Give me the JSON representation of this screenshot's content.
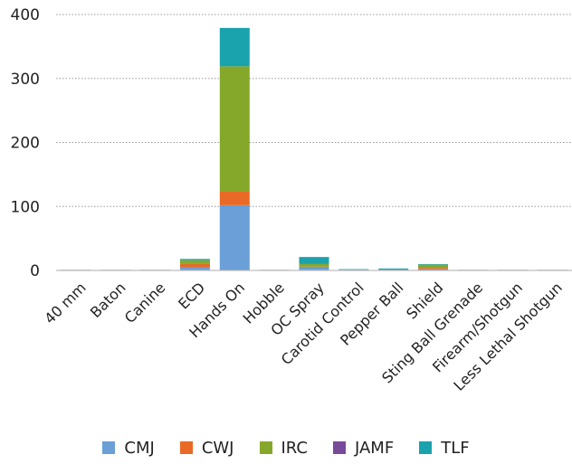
{
  "chart_data": {
    "type": "bar",
    "stacked": true,
    "categories": [
      "40 mm",
      "Baton",
      "Canine",
      "ECD",
      "Hands On",
      "Hobble",
      "OC Spray",
      "Carotid Control",
      "Pepper Ball",
      "Shield",
      "Sting Ball Grenade",
      "Firearm/Shotgun",
      "Less Lethal Shotgun"
    ],
    "series": [
      {
        "name": "CMJ",
        "color": "#6a9fd8",
        "values": [
          0,
          0,
          0,
          5,
          102,
          0,
          5,
          1,
          1,
          2,
          0,
          0,
          0
        ]
      },
      {
        "name": "CWJ",
        "color": "#e86a26",
        "values": [
          0,
          0,
          0,
          5,
          21,
          0,
          1,
          0,
          0,
          2,
          0,
          0,
          0
        ]
      },
      {
        "name": "IRC",
        "color": "#86a82a",
        "values": [
          0,
          0,
          0,
          6,
          196,
          0,
          4,
          0,
          0,
          5,
          0,
          0,
          0
        ]
      },
      {
        "name": "JAMF",
        "color": "#7a4a9a",
        "values": [
          0,
          0,
          0,
          0,
          0,
          0,
          0,
          0,
          0,
          0,
          0,
          0,
          0
        ]
      },
      {
        "name": "TLF",
        "color": "#1aa2ad",
        "values": [
          0,
          0,
          0,
          2,
          60,
          0,
          11,
          1,
          2,
          1,
          0,
          0,
          0
        ]
      }
    ],
    "ylim": [
      0,
      400
    ],
    "yticks": [
      0,
      100,
      200,
      300,
      400
    ],
    "grid": true,
    "legend_position": "bottom"
  }
}
